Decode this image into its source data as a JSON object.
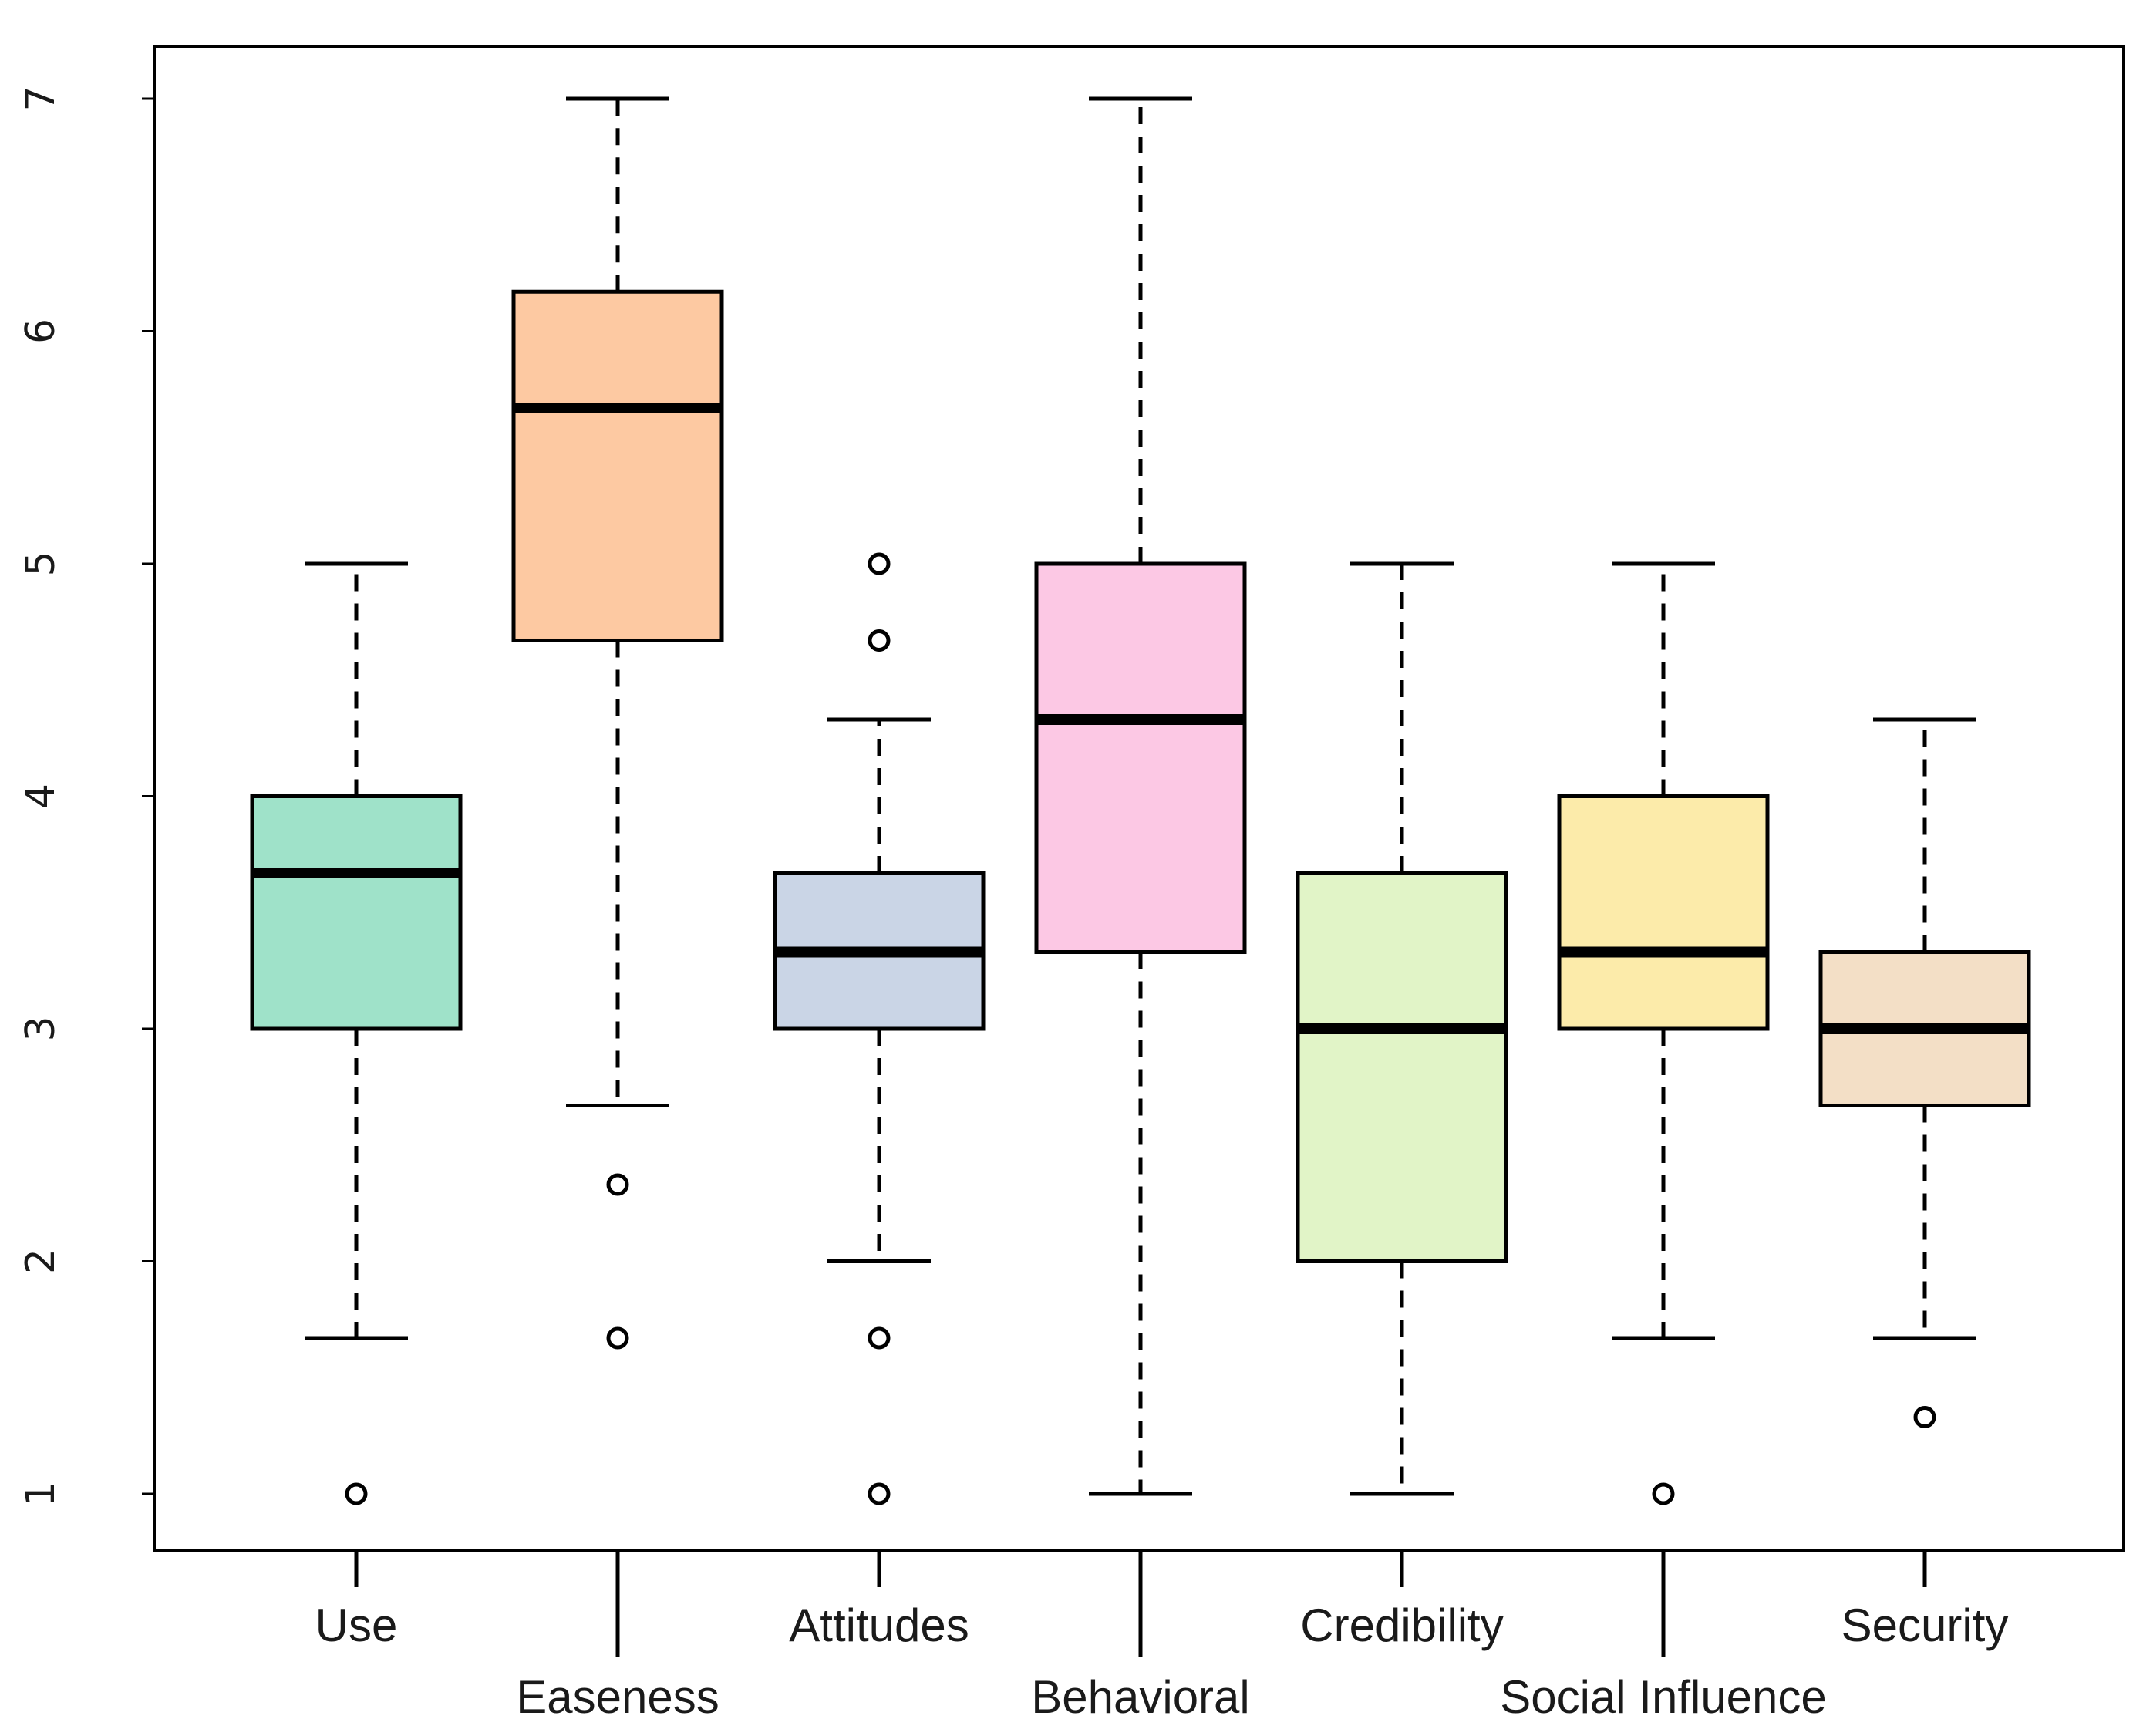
{
  "chart_data": {
    "type": "boxplot",
    "title": "",
    "xlabel": "",
    "ylabel": "",
    "ylim": [
      0.76,
      7.23
    ],
    "yticks": [
      1,
      2,
      3,
      4,
      5,
      6,
      7
    ],
    "grid": false,
    "legend": "none",
    "categories": [
      "Use",
      "Easeness",
      "Attitudes",
      "Behavioral",
      "Credibility",
      "Social Influence",
      "Security"
    ],
    "label_row": [
      "upper",
      "lower",
      "upper",
      "lower",
      "upper",
      "lower",
      "upper"
    ],
    "boxes": [
      {
        "name": "Use",
        "whisker_low": 1.67,
        "q1": 3.0,
        "median": 3.67,
        "q3": 4.0,
        "whisker_high": 5.0,
        "outliers": [
          1.0
        ],
        "color": "#9fe2c9"
      },
      {
        "name": "Easeness",
        "whisker_low": 2.67,
        "q1": 4.67,
        "median": 5.67,
        "q3": 6.17,
        "whisker_high": 7.0,
        "outliers": [
          2.33,
          1.67
        ],
        "color": "#fdc9a2"
      },
      {
        "name": "Attitudes",
        "whisker_low": 2.0,
        "q1": 3.0,
        "median": 3.33,
        "q3": 3.67,
        "whisker_high": 4.33,
        "outliers": [
          5.0,
          4.67,
          1.67,
          1.0
        ],
        "color": "#cad5e6"
      },
      {
        "name": "Behavioral",
        "whisker_low": 1.0,
        "q1": 3.33,
        "median": 4.33,
        "q3": 5.0,
        "whisker_high": 7.0,
        "outliers": [],
        "color": "#fcc8e4"
      },
      {
        "name": "Credibility",
        "whisker_low": 1.0,
        "q1": 2.0,
        "median": 3.0,
        "q3": 3.67,
        "whisker_high": 5.0,
        "outliers": [],
        "color": "#e1f4c7"
      },
      {
        "name": "Social Influence",
        "whisker_low": 1.67,
        "q1": 3.0,
        "median": 3.33,
        "q3": 4.0,
        "whisker_high": 5.0,
        "outliers": [
          1.0
        ],
        "color": "#fcebaa"
      },
      {
        "name": "Security",
        "whisker_low": 1.67,
        "q1": 2.67,
        "median": 3.0,
        "q3": 3.33,
        "whisker_high": 4.33,
        "outliers": [
          1.33
        ],
        "color": "#f3dfc6"
      }
    ]
  }
}
